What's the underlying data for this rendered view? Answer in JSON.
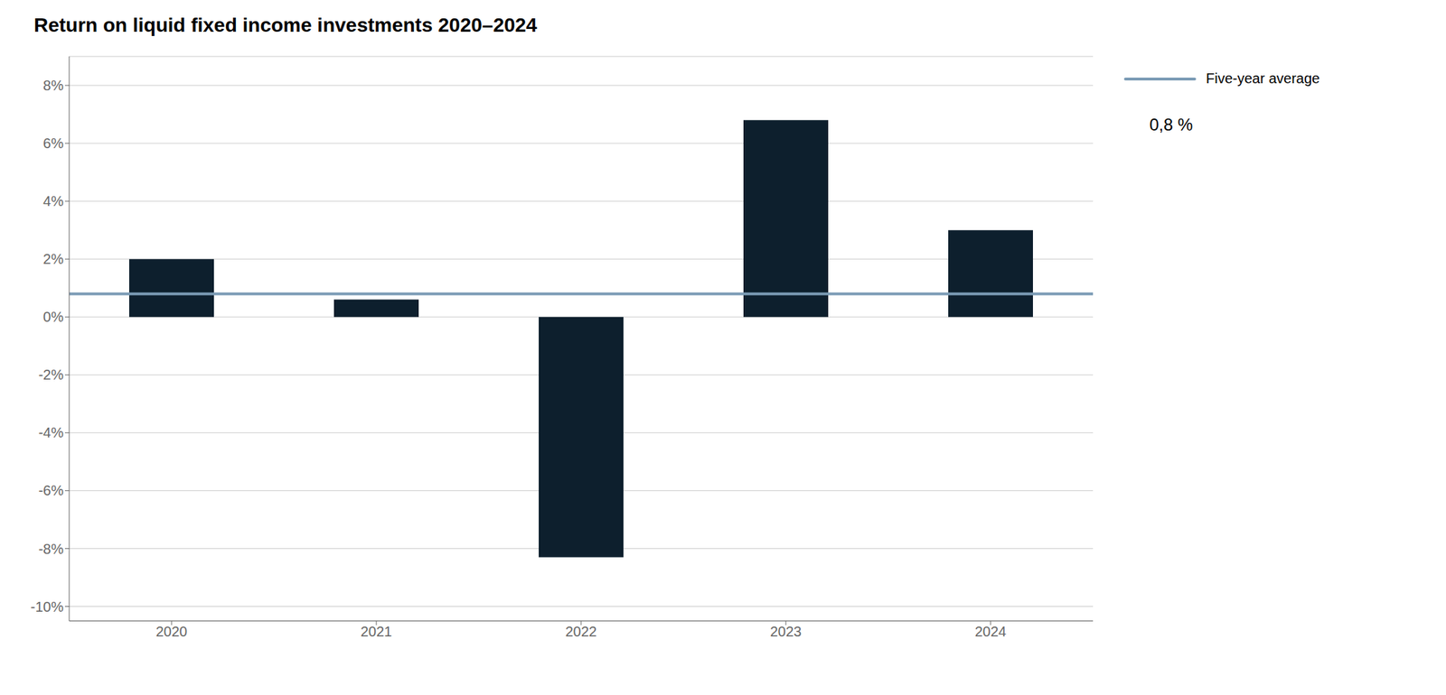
{
  "chart_data": {
    "type": "bar",
    "title": "Return on liquid fixed income investments 2020–2024",
    "categories": [
      "2020",
      "2021",
      "2022",
      "2023",
      "2024"
    ],
    "values": [
      2.0,
      0.6,
      -8.3,
      6.8,
      3.0
    ],
    "color": "#0d1f2d",
    "average": {
      "name": "Five-year average",
      "value": 0.8,
      "label": "0,8 %",
      "color": "#7b9bb5"
    },
    "ylim": [
      -10.5,
      9.0
    ],
    "yticks": [
      {
        "value": -10,
        "label": "-10%"
      },
      {
        "value": -8,
        "label": "-8%"
      },
      {
        "value": -6,
        "label": "-6%"
      },
      {
        "value": -4,
        "label": "-4%"
      },
      {
        "value": -2,
        "label": "-2%"
      },
      {
        "value": 0,
        "label": "0%"
      },
      {
        "value": 2,
        "label": "2%"
      },
      {
        "value": 4,
        "label": "4%"
      },
      {
        "value": 6,
        "label": "6%"
      },
      {
        "value": 8,
        "label": "8%"
      }
    ],
    "grid": true,
    "legend": "right"
  }
}
